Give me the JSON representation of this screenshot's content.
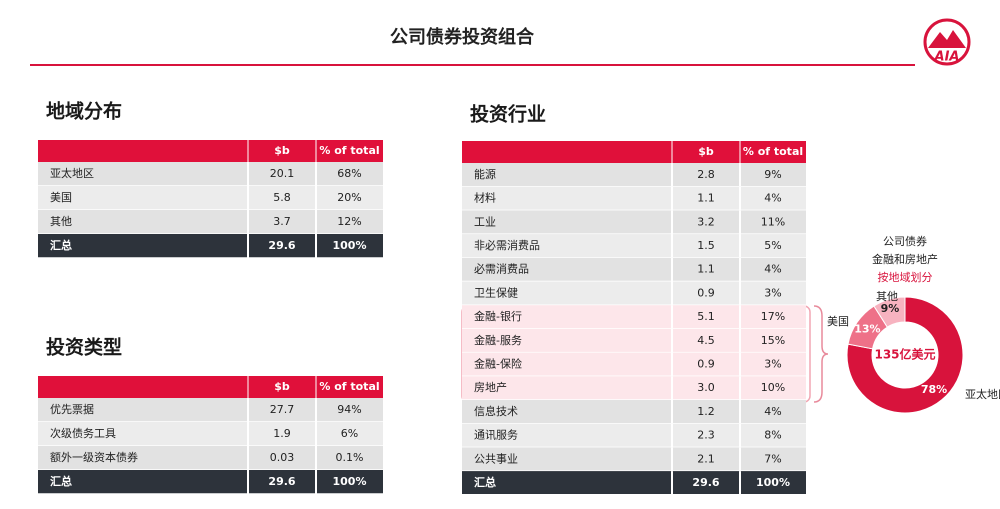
{
  "header": {
    "title": "公司债券投资组合",
    "logo": "AIA"
  },
  "regions": {
    "title": "地域分布",
    "columns": [
      "$b",
      "% of total"
    ],
    "rows": [
      [
        "亚太地区",
        "20.1",
        "68%"
      ],
      [
        "美国",
        "5.8",
        "20%"
      ],
      [
        "其他",
        "3.7",
        "12%"
      ]
    ],
    "total": [
      "汇总",
      "29.6",
      "100%"
    ]
  },
  "types": {
    "title": "投资类型",
    "columns": [
      "$b",
      "% of total"
    ],
    "rows": [
      [
        "优先票据",
        "27.7",
        "94%"
      ],
      [
        "次级债务工具",
        "1.9",
        "6%"
      ],
      [
        "额外一级资本债券",
        "0.03",
        "0.1%"
      ]
    ],
    "total": [
      "汇总",
      "29.6",
      "100%"
    ]
  },
  "industries": {
    "title": "投资行业",
    "columns": [
      "$b",
      "% of total"
    ],
    "rows": [
      [
        "能源",
        "2.8",
        "9%"
      ],
      [
        "材料",
        "1.1",
        "4%"
      ],
      [
        "工业",
        "3.2",
        "11%"
      ],
      [
        "非必需消费品",
        "1.5",
        "5%"
      ],
      [
        "必需消费品",
        "1.1",
        "4%"
      ],
      [
        "卫生保健",
        "0.9",
        "3%"
      ],
      [
        "金融-银行",
        "5.1",
        "17%"
      ],
      [
        "金融-服务",
        "4.5",
        "15%"
      ],
      [
        "金融-保险",
        "0.9",
        "3%"
      ],
      [
        "房地产",
        "3.0",
        "10%"
      ],
      [
        "信息技术",
        "1.2",
        "4%"
      ],
      [
        "通讯服务",
        "2.3",
        "8%"
      ],
      [
        "公共事业",
        "2.1",
        "7%"
      ]
    ],
    "total": [
      "汇总",
      "29.6",
      "100%"
    ]
  },
  "donut": {
    "type": "pie",
    "title_lines": [
      "公司债券",
      "金融和房地产",
      "按地域划分"
    ],
    "center_label": "135亿美元",
    "categories": [
      "亚太地区",
      "美国",
      "其他"
    ],
    "values": [
      78,
      13,
      9
    ],
    "value_labels": [
      "78%",
      "13%",
      "9%"
    ],
    "colors": [
      "#d8133c",
      "#ee7188",
      "#f7b3c0"
    ]
  }
}
